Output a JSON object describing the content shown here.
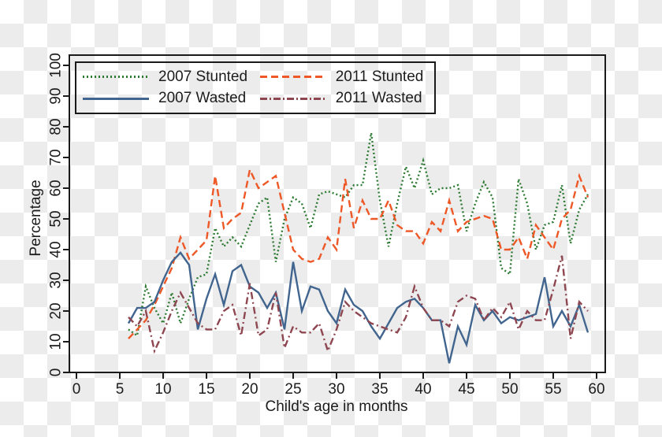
{
  "axes": {
    "x": {
      "label": "Child's age in months",
      "ticks": [
        0,
        5,
        10,
        15,
        20,
        25,
        30,
        35,
        40,
        45,
        50,
        55,
        60
      ]
    },
    "y": {
      "label": "Percentage",
      "ticks": [
        0,
        10,
        20,
        30,
        40,
        50,
        60,
        70,
        80,
        90,
        100
      ]
    }
  },
  "frame_color": "#1a1a1a",
  "text_color": "#1c1c1c",
  "chart_data": {
    "type": "line",
    "title": "",
    "xlabel": "Child's age in months",
    "ylabel": "Percentage",
    "xlim": [
      0,
      62
    ],
    "ylim": [
      0,
      100
    ],
    "grid": false,
    "legend_position": "top-left",
    "x": [
      6,
      7,
      8,
      9,
      10,
      11,
      12,
      13,
      14,
      15,
      16,
      17,
      18,
      19,
      20,
      21,
      22,
      23,
      24,
      25,
      26,
      27,
      28,
      29,
      30,
      31,
      32,
      33,
      34,
      35,
      36,
      37,
      38,
      39,
      40,
      41,
      42,
      43,
      44,
      45,
      46,
      47,
      48,
      49,
      50,
      51,
      52,
      53,
      54,
      55,
      56,
      57,
      58,
      59
    ],
    "series": [
      {
        "name": "2007 Stunted",
        "color": "#2d7a32",
        "dash": "dotted",
        "values": [
          14,
          12,
          28,
          21,
          16,
          26,
          16,
          24,
          31,
          32,
          47,
          41,
          44,
          41,
          48,
          55,
          57,
          36,
          50,
          57,
          55,
          47,
          58,
          59,
          58,
          57,
          61,
          61,
          78,
          56,
          41,
          55,
          67,
          60,
          69,
          58,
          60,
          60,
          61,
          46,
          55,
          62,
          57,
          34,
          32,
          63,
          55,
          40,
          48,
          49,
          61,
          42,
          53,
          58
        ]
      },
      {
        "name": "2011 Stunted",
        "color": "#ee5726",
        "dash": "dashed",
        "values": [
          11,
          14,
          17,
          22,
          28,
          34,
          44,
          37,
          40,
          43,
          64,
          47,
          50,
          52,
          66,
          60,
          62,
          64,
          52,
          40,
          37,
          36,
          37,
          44,
          40,
          63,
          47,
          56,
          50,
          50,
          56,
          48,
          46,
          46,
          42,
          49,
          46,
          56,
          46,
          49,
          50,
          51,
          50,
          40,
          40,
          44,
          37,
          48,
          44,
          40,
          50,
          53,
          64,
          57
        ]
      },
      {
        "name": "2007 Wasted",
        "color": "#41658e",
        "dash": "solid",
        "values": [
          16,
          21,
          21,
          23,
          30,
          36,
          39,
          35,
          14,
          24,
          32,
          22,
          33,
          35,
          28,
          26,
          21,
          26,
          14,
          36,
          20,
          28,
          27,
          20,
          16,
          27,
          22,
          20,
          15,
          11,
          16,
          21,
          23,
          24,
          21,
          17,
          17,
          3,
          15,
          9,
          22,
          17,
          20,
          16,
          18,
          17,
          18,
          19,
          31,
          15,
          20,
          15,
          22,
          13
        ]
      },
      {
        "name": "2011 Wasted",
        "color": "#8e4650",
        "dash": "dashdot",
        "values": [
          18,
          15,
          20,
          7,
          13,
          20,
          26,
          21,
          16,
          14,
          14,
          20,
          22,
          12,
          29,
          12,
          14,
          26,
          8,
          15,
          13,
          13,
          16,
          7,
          14,
          23,
          20,
          18,
          16,
          15,
          14,
          13,
          18,
          28,
          21,
          17,
          17,
          15,
          23,
          25,
          24,
          17,
          21,
          18,
          23,
          14,
          20,
          17,
          17,
          27,
          38,
          11,
          23,
          20
        ]
      }
    ]
  }
}
